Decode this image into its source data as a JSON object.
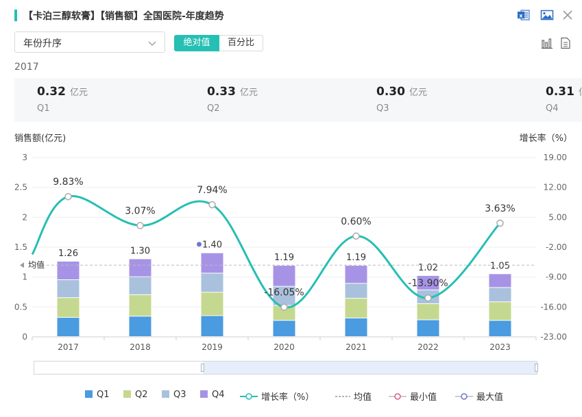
{
  "header": {
    "title": "【卡泊三醇软膏】【销售额】全国医院-年度趋势",
    "icons": [
      "excel-export-icon",
      "image-export-icon",
      "close-icon"
    ]
  },
  "controls": {
    "sort_select": "年份升序",
    "mode_absolute": "绝对值",
    "mode_percent": "百分比",
    "view_icons": [
      "bar-chart-icon",
      "table-view-icon"
    ]
  },
  "summary": {
    "year": "2017",
    "unit": "亿元",
    "cards": [
      {
        "value": "0.32",
        "quarter": "Q1"
      },
      {
        "value": "0.33",
        "quarter": "Q2"
      },
      {
        "value": "0.30",
        "quarter": "Q3"
      },
      {
        "value": "0.31",
        "quarter": "Q4"
      }
    ]
  },
  "colors": {
    "accent": "#26bfb3",
    "q1": "#4a9be0",
    "q2": "#c5d88f",
    "q3": "#a9c1dc",
    "q4": "#a793e6",
    "growth": "#26bfb3",
    "avg": "#bbbbbb",
    "min": "#e05a8a",
    "max": "#6f75d0"
  },
  "chart_data": {
    "type": "bar",
    "stacked": true,
    "categories": [
      "2017",
      "2018",
      "2019",
      "2020",
      "2021",
      "2022",
      "2023"
    ],
    "ylabel": "销售额(亿元)",
    "y2label": "增长率（%）",
    "ylim": [
      0,
      3
    ],
    "yticks": [
      "0",
      "0.5",
      "1",
      "1.5",
      "2",
      "2.5",
      "3"
    ],
    "y2lim": [
      -23,
      19
    ],
    "y2ticks": [
      "-23.00",
      "-16.00",
      "-9.00",
      "-2.00",
      "5.00",
      "12.00",
      "19.00"
    ],
    "series": [
      {
        "name": "Q1",
        "values": [
          0.32,
          0.34,
          0.35,
          0.27,
          0.31,
          0.28,
          0.27
        ]
      },
      {
        "name": "Q2",
        "values": [
          0.33,
          0.36,
          0.39,
          0.25,
          0.33,
          0.27,
          0.31
        ]
      },
      {
        "name": "Q3",
        "values": [
          0.3,
          0.3,
          0.32,
          0.32,
          0.25,
          0.23,
          0.24
        ]
      },
      {
        "name": "Q4",
        "values": [
          0.31,
          0.3,
          0.34,
          0.35,
          0.3,
          0.24,
          0.23
        ]
      }
    ],
    "totals": [
      1.26,
      1.3,
      1.4,
      1.19,
      1.19,
      1.02,
      1.05
    ],
    "total_labels": [
      "1.26",
      "1.30",
      "1.40",
      "1.19",
      "1.19",
      "1.02",
      "1.05"
    ],
    "growth_series": {
      "name": "增长率（%）",
      "values": [
        9.83,
        3.07,
        7.94,
        -16.05,
        0.6,
        -13.9,
        3.63
      ],
      "labels": [
        "9.83%",
        "3.07%",
        "7.94%",
        "-16.05%",
        "0.60%",
        "-13.90%",
        "3.63%"
      ]
    },
    "average": {
      "label": "均值",
      "value": 1.2
    },
    "max_marker_index": 2
  },
  "legend": {
    "items": [
      "Q1",
      "Q2",
      "Q3",
      "Q4",
      "增长率（%）",
      "均值",
      "最小值",
      "最大值"
    ]
  }
}
